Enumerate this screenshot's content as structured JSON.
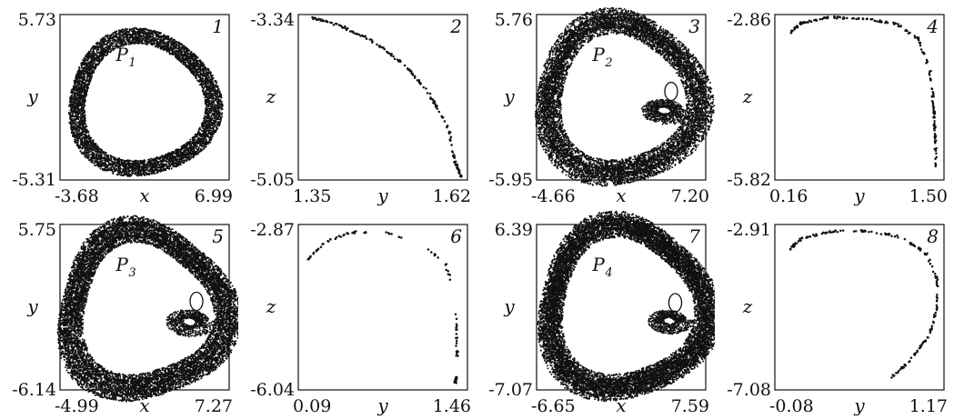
{
  "chart_data": [
    {
      "type": "scatter",
      "panel_number": "1",
      "xlabel": "x",
      "ylabel": "y",
      "xlim": [
        -3.68,
        6.99
      ],
      "ylim": [
        -5.31,
        5.73
      ],
      "x_ticks": [
        "-3.68",
        "6.99"
      ],
      "y_ticks": [
        "5.73",
        "-5.31"
      ],
      "annotation": {
        "main": "P",
        "sub": "1"
      },
      "shape": "attractor-cycle",
      "variant": 1,
      "band_count": 1,
      "structure": {
        "cx": 1.55,
        "cy": -0.1,
        "rx": 4.3,
        "ry": 4.4,
        "deform": 0.08,
        "width": 1.05,
        "spread": 0.0
      },
      "inset": null
    },
    {
      "type": "scatter",
      "panel_number": "2",
      "xlabel": "y",
      "ylabel": "z",
      "xlim": [
        1.35,
        1.62
      ],
      "ylim": [
        -5.05,
        -3.34
      ],
      "x_ticks": [
        "1.35",
        "1.62"
      ],
      "y_ticks": [
        "-3.34",
        "-5.05"
      ],
      "shape": "section-curve",
      "curve_points": [
        [
          1.37,
          -3.37
        ],
        [
          1.42,
          -3.46
        ],
        [
          1.47,
          -3.62
        ],
        [
          1.52,
          -3.86
        ],
        [
          1.56,
          -4.17
        ],
        [
          1.59,
          -4.52
        ],
        [
          1.6,
          -4.86
        ],
        [
          1.61,
          -5.02
        ]
      ]
    },
    {
      "type": "scatter",
      "panel_number": "3",
      "xlabel": "x",
      "ylabel": "y",
      "xlim": [
        -4.66,
        7.2
      ],
      "ylim": [
        -5.95,
        5.76
      ],
      "x_ticks": [
        "-4.66",
        "7.20"
      ],
      "y_ticks": [
        "5.76",
        "-5.95"
      ],
      "annotation": {
        "main": "P",
        "sub": "2"
      },
      "shape": "attractor-cycle",
      "variant": 2,
      "band_count": 3,
      "structure": {
        "cx": 1.25,
        "cy": -0.05,
        "rx": 4.8,
        "ry": 4.85,
        "deform": 0.1,
        "width": 0.9,
        "spread": 0.95
      },
      "inset": {
        "x": 4.3,
        "y": -1.0,
        "rx": 1.9,
        "ry": 1.2
      }
    },
    {
      "type": "scatter",
      "panel_number": "4",
      "xlabel": "y",
      "ylabel": "z",
      "xlim": [
        0.16,
        1.5
      ],
      "ylim": [
        -5.82,
        -2.86
      ],
      "x_ticks": [
        "0.16",
        "1.50"
      ],
      "y_ticks": [
        "-2.86",
        "-5.82"
      ],
      "shape": "section-curve",
      "curve_points": [
        [
          0.27,
          -3.22
        ],
        [
          0.36,
          -3.02
        ],
        [
          0.58,
          -2.91
        ],
        [
          0.85,
          -2.93
        ],
        [
          1.12,
          -3.02
        ],
        [
          1.3,
          -3.3
        ],
        [
          1.39,
          -3.88
        ],
        [
          1.42,
          -4.52
        ],
        [
          1.43,
          -5.1
        ],
        [
          1.44,
          -5.62
        ]
      ]
    },
    {
      "type": "scatter",
      "panel_number": "5",
      "xlabel": "x",
      "ylabel": "y",
      "xlim": [
        -4.99,
        7.27
      ],
      "ylim": [
        -6.14,
        5.75
      ],
      "x_ticks": [
        "-4.99",
        "7.27"
      ],
      "y_ticks": [
        "5.75",
        "-6.14"
      ],
      "annotation": {
        "main": "P",
        "sub": "3"
      },
      "shape": "attractor-cycle",
      "variant": 3,
      "band_count": 4,
      "structure": {
        "cx": 1.15,
        "cy": -0.25,
        "rx": 5.0,
        "ry": 5.0,
        "deform": 0.14,
        "width": 0.7,
        "spread": 1.2
      },
      "inset": {
        "x": 4.4,
        "y": -1.2,
        "rx": 2.0,
        "ry": 1.3
      }
    },
    {
      "type": "scatter",
      "panel_number": "6",
      "xlabel": "y",
      "ylabel": "z",
      "xlim": [
        0.09,
        1.46
      ],
      "ylim": [
        -6.04,
        -2.87
      ],
      "x_ticks": [
        "0.09",
        "1.46"
      ],
      "y_ticks": [
        "-2.87",
        "-6.04"
      ],
      "shape": "section-scatter",
      "curve_points": [
        [
          0.17,
          -3.55
        ],
        [
          0.3,
          -3.2
        ],
        [
          0.52,
          -3.02
        ],
        [
          0.78,
          -3.02
        ],
        [
          1.05,
          -3.2
        ],
        [
          1.28,
          -3.6
        ],
        [
          1.36,
          -4.2
        ],
        [
          1.37,
          -4.9
        ],
        [
          1.38,
          -5.6
        ],
        [
          1.36,
          -5.9
        ]
      ],
      "gap_ranges": [
        [
          0.4,
          0.48
        ],
        [
          0.62,
          0.72
        ],
        [
          0.86,
          0.96
        ]
      ]
    },
    {
      "type": "scatter",
      "panel_number": "7",
      "xlabel": "x",
      "ylabel": "y",
      "xlim": [
        -6.65,
        7.59
      ],
      "ylim": [
        -7.07,
        6.39
      ],
      "x_ticks": [
        "-6.65",
        "7.59"
      ],
      "y_ticks": [
        "6.39",
        "-7.07"
      ],
      "annotation": {
        "main": "P",
        "sub": "4"
      },
      "shape": "attractor-cycle",
      "variant": 4,
      "band_count": 5,
      "structure": {
        "cx": 0.8,
        "cy": -0.2,
        "rx": 5.9,
        "ry": 5.9,
        "deform": 0.12,
        "width": 0.85,
        "spread": 1.3
      },
      "inset": {
        "x": 4.5,
        "y": -1.4,
        "rx": 2.1,
        "ry": 1.3
      }
    },
    {
      "type": "scatter",
      "panel_number": "8",
      "xlabel": "y",
      "ylabel": "z",
      "xlim": [
        -0.08,
        1.17
      ],
      "ylim": [
        -7.08,
        -2.91
      ],
      "x_ticks": [
        "-0.08",
        "1.17"
      ],
      "y_ticks": [
        "-2.91",
        "-7.08"
      ],
      "shape": "section-curve",
      "curve_points": [
        [
          0.03,
          -3.52
        ],
        [
          0.13,
          -3.24
        ],
        [
          0.35,
          -3.08
        ],
        [
          0.6,
          -3.07
        ],
        [
          0.85,
          -3.22
        ],
        [
          1.04,
          -3.65
        ],
        [
          1.12,
          -4.3
        ],
        [
          1.12,
          -5.0
        ],
        [
          1.06,
          -5.7
        ],
        [
          0.92,
          -6.35
        ],
        [
          0.79,
          -6.75
        ]
      ]
    }
  ]
}
